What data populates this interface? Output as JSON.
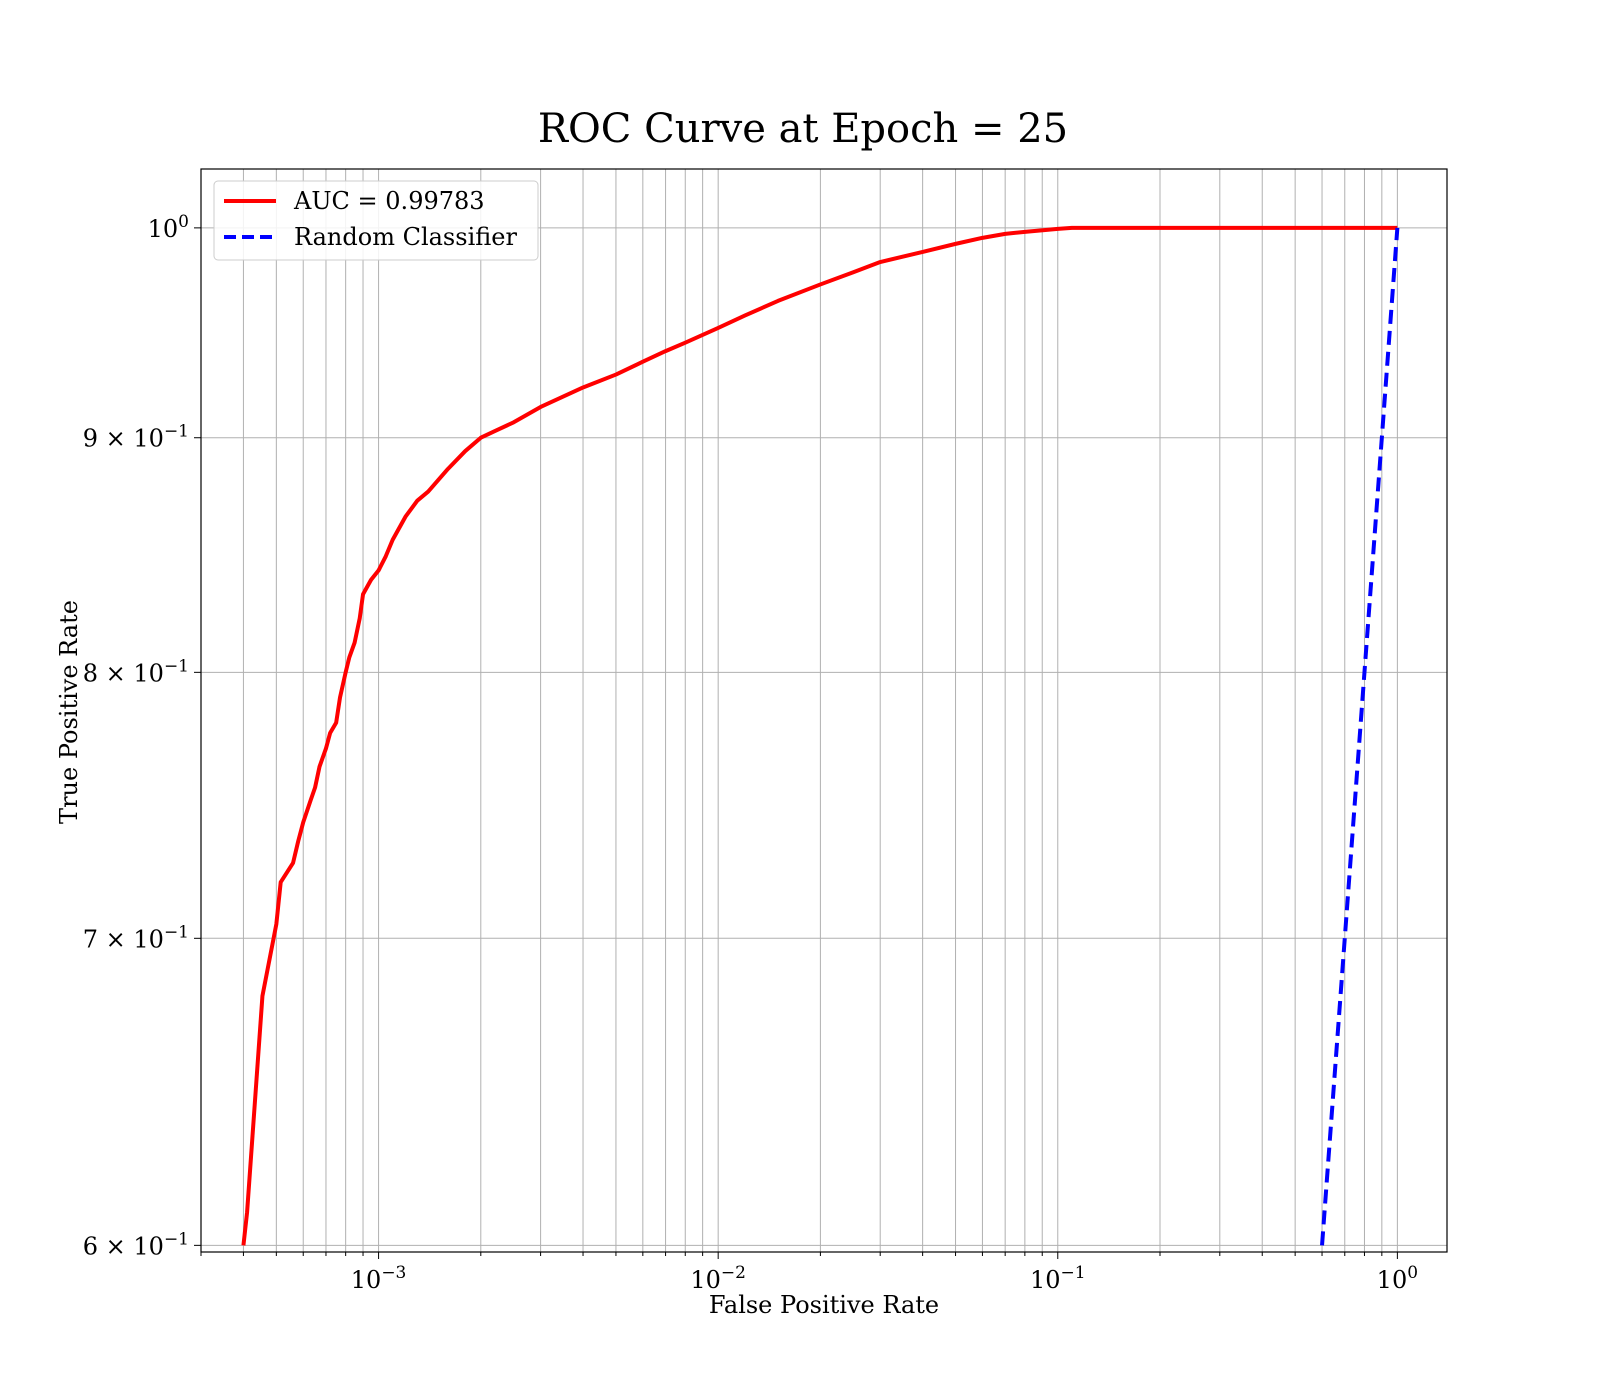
{
  "chart_data": {
    "type": "line",
    "title": "ROC Curve at Epoch = 25",
    "xlabel": "False Positive Rate",
    "ylabel": "True Positive Rate",
    "xscale": "log",
    "yscale": "log",
    "xlim": [
      0.0003,
      1.4
    ],
    "ylim": [
      0.598,
      1.03
    ],
    "grid": true,
    "legend_position": "top-left",
    "x_ticks": [
      {
        "value": 0.001,
        "base": "10",
        "exp": "−3"
      },
      {
        "value": 0.01,
        "base": "10",
        "exp": "−2"
      },
      {
        "value": 0.1,
        "base": "10",
        "exp": "−1"
      },
      {
        "value": 1,
        "base": "10",
        "exp": "0"
      }
    ],
    "y_ticks": [
      {
        "value": 0.6,
        "base": "6 × 10",
        "exp": "−1"
      },
      {
        "value": 0.7,
        "base": "7 × 10",
        "exp": "−1"
      },
      {
        "value": 0.8,
        "base": "8 × 10",
        "exp": "−1"
      },
      {
        "value": 0.9,
        "base": "9 × 10",
        "exp": "−1"
      },
      {
        "value": 1.0,
        "base": "10",
        "exp": "0"
      }
    ],
    "series": [
      {
        "name": "AUC = 0.99783",
        "color": "#ff0000",
        "style": "solid",
        "x": [
          0.0004,
          0.00041,
          0.000455,
          0.0005,
          0.000515,
          0.00056,
          0.00058,
          0.0006,
          0.00063,
          0.00065,
          0.00067,
          0.0007,
          0.00072,
          0.00075,
          0.00077,
          0.0008,
          0.00082,
          0.00085,
          0.00088,
          0.0009,
          0.00095,
          0.001,
          0.00105,
          0.0011,
          0.0012,
          0.0013,
          0.0014,
          0.0016,
          0.0018,
          0.002,
          0.0022,
          0.0025,
          0.003,
          0.004,
          0.005,
          0.006,
          0.007,
          0.008,
          0.01,
          0.012,
          0.015,
          0.02,
          0.025,
          0.03,
          0.04,
          0.05,
          0.06,
          0.07,
          0.08,
          0.1,
          0.11,
          0.2,
          0.5,
          1.0
        ],
        "y": [
          0.6,
          0.61,
          0.68,
          0.705,
          0.72,
          0.727,
          0.735,
          0.742,
          0.75,
          0.755,
          0.763,
          0.77,
          0.776,
          0.78,
          0.79,
          0.8,
          0.806,
          0.812,
          0.822,
          0.832,
          0.838,
          0.842,
          0.848,
          0.855,
          0.865,
          0.872,
          0.876,
          0.886,
          0.894,
          0.9,
          0.903,
          0.907,
          0.914,
          0.923,
          0.929,
          0.935,
          0.94,
          0.944,
          0.951,
          0.957,
          0.964,
          0.972,
          0.978,
          0.983,
          0.988,
          0.992,
          0.995,
          0.997,
          0.998,
          0.9995,
          1.0,
          1.0,
          1.0,
          1.0
        ]
      },
      {
        "name": "Random Classifier",
        "color": "#0000ff",
        "style": "dashed",
        "x": [
          0.6,
          0.7,
          0.8,
          0.9,
          1.0
        ],
        "y": [
          0.6,
          0.7,
          0.8,
          0.9,
          1.0
        ]
      }
    ]
  }
}
